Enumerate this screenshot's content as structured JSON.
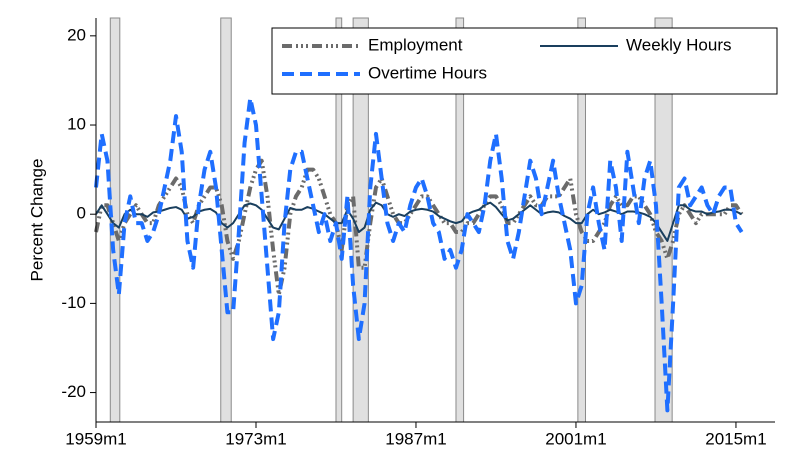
{
  "chart_data": {
    "type": "line",
    "y_label": "Percent Change",
    "x": [
      "1959m1",
      "1959m7",
      "1960m1",
      "1960m7",
      "1961m1",
      "1961m7",
      "1962m1",
      "1962m7",
      "1963m1",
      "1963m7",
      "1964m1",
      "1964m7",
      "1965m1",
      "1965m7",
      "1966m1",
      "1966m7",
      "1967m1",
      "1967m7",
      "1968m1",
      "1968m7",
      "1969m1",
      "1969m7",
      "1970m1",
      "1970m7",
      "1971m1",
      "1971m7",
      "1972m1",
      "1972m7",
      "1973m1",
      "1973m7",
      "1974m1",
      "1974m7",
      "1975m1",
      "1975m7",
      "1976m1",
      "1976m7",
      "1977m1",
      "1977m7",
      "1978m1",
      "1978m7",
      "1979m1",
      "1979m7",
      "1980m1",
      "1980m7",
      "1981m1",
      "1981m7",
      "1982m1",
      "1982m7",
      "1983m1",
      "1983m7",
      "1984m1",
      "1984m7",
      "1985m1",
      "1985m7",
      "1986m1",
      "1986m7",
      "1987m1",
      "1987m7",
      "1988m1",
      "1988m7",
      "1989m1",
      "1989m7",
      "1990m1",
      "1990m7",
      "1991m1",
      "1991m7",
      "1992m1",
      "1992m7",
      "1993m1",
      "1993m7",
      "1994m1",
      "1994m7",
      "1995m1",
      "1995m7",
      "1996m1",
      "1996m7",
      "1997m1",
      "1997m7",
      "1998m1",
      "1998m7",
      "1999m1",
      "1999m7",
      "2000m1",
      "2000m7",
      "2001m1",
      "2001m7",
      "2002m1",
      "2002m7",
      "2003m1",
      "2003m7",
      "2004m1",
      "2004m7",
      "2005m1",
      "2005m7",
      "2006m1",
      "2006m7",
      "2007m1",
      "2007m7",
      "2008m1",
      "2008m7",
      "2009m1",
      "2009m7",
      "2010m1",
      "2010m7",
      "2011m1",
      "2011m7",
      "2012m1",
      "2012m7",
      "2013m1",
      "2013m7",
      "2014m1",
      "2014m7",
      "2015m1",
      "2015m7"
    ],
    "series": [
      {
        "name": "Employment",
        "color": "#6b6b6b",
        "style": "dashdot",
        "values": [
          -2,
          1,
          1,
          -1,
          -3,
          -1,
          0,
          1,
          0,
          -1,
          -1,
          1,
          2,
          3,
          4,
          3,
          0,
          -1,
          1,
          2,
          3,
          3,
          1,
          -3,
          -5,
          -3,
          0,
          3,
          5,
          6,
          2,
          -4,
          -9,
          -6,
          0,
          2,
          3,
          5,
          5,
          4,
          2,
          0,
          -1,
          -4,
          1,
          2,
          -6,
          -6,
          -1,
          3,
          4,
          2,
          0,
          -1,
          -1,
          0,
          1,
          2,
          2,
          1,
          0,
          -1,
          -1,
          -2,
          -2,
          -1,
          -1,
          0,
          1,
          2,
          2,
          1,
          -1,
          -1,
          0,
          1,
          2,
          1,
          1,
          2,
          2,
          2,
          3,
          4,
          0,
          -2,
          -3,
          -3,
          -2,
          -1,
          1,
          2,
          1,
          1,
          2,
          2,
          1,
          0,
          -2,
          -3,
          -5,
          -3,
          0,
          1,
          0,
          -1,
          0,
          0,
          0,
          0,
          0,
          1,
          1,
          0
        ]
      },
      {
        "name": "Weekly Hours",
        "color": "#1a3f5e",
        "style": "solid",
        "values": [
          0,
          1,
          0,
          -1,
          -1.5,
          0,
          0.5,
          0,
          0,
          -0.3,
          0.2,
          0.3,
          0.5,
          0.7,
          0.8,
          0.5,
          -0.5,
          -0.3,
          0.3,
          0.5,
          0.6,
          0.2,
          -1,
          -1.5,
          -1,
          0,
          1,
          1.2,
          1,
          0.5,
          -0.5,
          -1.5,
          -1.7,
          -0.5,
          0.7,
          0.5,
          0.5,
          0.8,
          0.6,
          0.3,
          0,
          -0.5,
          -1,
          -1,
          0.5,
          -0.5,
          -2,
          -1.5,
          0.5,
          1.3,
          1,
          0,
          -0.3,
          0,
          -0.2,
          0.3,
          0.5,
          0.6,
          0.5,
          0.3,
          -0.2,
          -0.5,
          -0.8,
          -1,
          -0.8,
          0,
          0.3,
          0.5,
          1,
          1.3,
          0.8,
          0,
          -0.7,
          -0.5,
          0,
          0.5,
          1,
          0.5,
          0,
          0.2,
          0.3,
          0.2,
          -0.2,
          -0.5,
          -1,
          -1,
          0,
          0.5,
          0,
          0.2,
          0.5,
          0.3,
          0,
          0.3,
          0.3,
          0.2,
          0,
          -0.3,
          -1,
          -2,
          -3,
          -1,
          1,
          1,
          0.5,
          0.3,
          0.3,
          0,
          0.2,
          0.3,
          0.5,
          0.5,
          0.3,
          0
        ]
      },
      {
        "name": "Overtime Hours",
        "color": "#1f6fff",
        "style": "dashed",
        "values": [
          3,
          9,
          6,
          -4,
          -9,
          -1,
          2,
          -1,
          -1,
          -3,
          -2,
          0,
          3,
          6,
          11,
          7,
          -3,
          -6,
          1,
          5,
          7,
          3,
          -4,
          -11,
          -11,
          -2,
          8,
          13,
          10,
          2,
          -6,
          -14,
          -11,
          -1,
          5,
          7,
          7,
          4,
          1,
          -2,
          0,
          -3,
          -1,
          -5,
          2,
          -8,
          -14,
          -10,
          3,
          9,
          4,
          -1,
          -3,
          -1,
          -2,
          1,
          3,
          4,
          2,
          -1,
          -2,
          -5,
          -4,
          -6,
          -4,
          0,
          -1,
          -2,
          1,
          6,
          9,
          4,
          -3,
          -5,
          -2,
          2,
          6,
          4,
          0,
          3,
          6,
          2,
          -1,
          -4,
          -10,
          -8,
          0,
          3,
          -1,
          -4,
          6,
          3,
          -3,
          7,
          3,
          -1,
          4,
          6,
          1,
          -10,
          -22,
          -10,
          3,
          4,
          1,
          2,
          3,
          1,
          0,
          2,
          3,
          3,
          -1,
          -2
        ]
      }
    ],
    "recessions": [
      [
        "1960m4",
        "1961m2"
      ],
      [
        "1969m12",
        "1970m11"
      ],
      [
        "1980m1",
        "1980m7"
      ],
      [
        "1981m7",
        "1982m11"
      ],
      [
        "1990m7",
        "1991m3"
      ],
      [
        "2001m3",
        "2001m11"
      ],
      [
        "2007m12",
        "2009m6"
      ]
    ],
    "xlim": [
      "1959m1",
      "2018m6"
    ],
    "xticks": [
      "1959m1",
      "1973m1",
      "1987m1",
      "2001m1",
      "2015m1"
    ],
    "ylim": [
      -23.3,
      22
    ],
    "yticks": [
      -20,
      -10,
      0,
      10,
      20
    ],
    "legend_position": "top"
  }
}
